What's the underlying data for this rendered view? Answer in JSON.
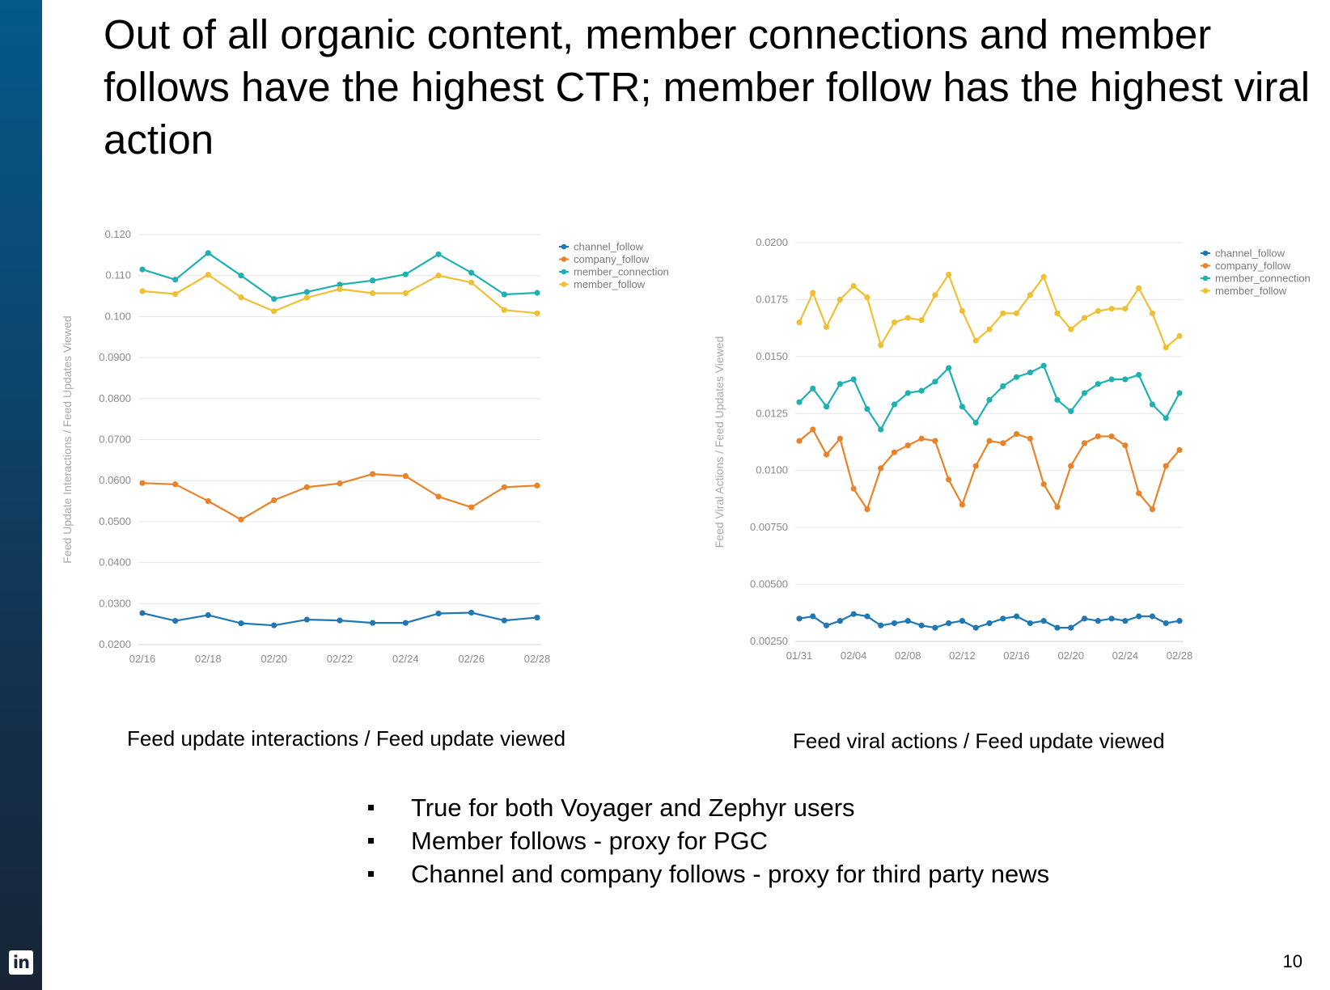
{
  "slide": {
    "title": "Out of all organic content, member connections and member follows have the highest CTR; member follow has the highest viral action",
    "caption_left": "Feed update interactions  / Feed update viewed",
    "caption_right": "Feed viral actions  / Feed update viewed",
    "bullets": [
      "True for both Voyager and Zephyr users",
      "Member follows - proxy for PGC",
      "Channel and company follows - proxy for third party news"
    ],
    "page_number": "10",
    "logo_text": "in"
  },
  "colors": {
    "channel_follow": "#1f77b4",
    "company_follow": "#e8832a",
    "member_connection": "#1fb1b1",
    "member_follow": "#f0c034",
    "grid": "#e6e6e6",
    "sidebar": "#0b4a73"
  },
  "chart_data": [
    {
      "type": "line",
      "title": "",
      "xlabel": "",
      "ylabel": "Feed Update Interactions / Feed Updates Viewed",
      "ylim": [
        0.02,
        0.12
      ],
      "yticks": [
        0.02,
        0.03,
        0.04,
        0.05,
        0.06,
        0.07,
        0.08,
        0.09,
        0.1,
        0.11,
        0.12
      ],
      "ytick_labels": [
        "0.0200",
        "0.0300",
        "0.0400",
        "0.0500",
        "0.0600",
        "0.0700",
        "0.0800",
        "0.0900",
        "0.100",
        "0.110",
        "0.120"
      ],
      "x": [
        "02/16",
        "02/17",
        "02/18",
        "02/19",
        "02/20",
        "02/21",
        "02/22",
        "02/23",
        "02/24",
        "02/25",
        "02/26",
        "02/27",
        "02/28"
      ],
      "xtick_labels": [
        "02/16",
        "02/18",
        "02/20",
        "02/22",
        "02/24",
        "02/26",
        "02/28"
      ],
      "grid": true,
      "legend": "top-right",
      "series": [
        {
          "name": "channel_follow",
          "values": [
            0.0277,
            0.0258,
            0.0272,
            0.0252,
            0.0247,
            0.0261,
            0.0259,
            0.0253,
            0.0253,
            0.0276,
            0.0278,
            0.0259,
            0.0266
          ]
        },
        {
          "name": "company_follow",
          "values": [
            0.0594,
            0.0591,
            0.055,
            0.0505,
            0.0552,
            0.0584,
            0.0593,
            0.0616,
            0.0611,
            0.0561,
            0.0535,
            0.0584,
            0.0588
          ]
        },
        {
          "name": "member_connection",
          "values": [
            0.1115,
            0.109,
            0.1155,
            0.11,
            0.1043,
            0.106,
            0.1078,
            0.1088,
            0.1103,
            0.1152,
            0.1107,
            0.1054,
            0.1058
          ]
        },
        {
          "name": "member_follow",
          "values": [
            0.1062,
            0.1055,
            0.1102,
            0.1047,
            0.1013,
            0.1046,
            0.1067,
            0.1057,
            0.1057,
            0.11,
            0.1083,
            0.1016,
            0.1008
          ]
        }
      ]
    },
    {
      "type": "line",
      "title": "",
      "xlabel": "",
      "ylabel": "Feed Viral Actions / Feed Updates Viewed",
      "ylim": [
        0.0025,
        0.02
      ],
      "yticks": [
        0.0025,
        0.005,
        0.0075,
        0.01,
        0.0125,
        0.015,
        0.0175,
        0.02
      ],
      "ytick_labels": [
        "0.00250",
        "0.00500",
        "0.00750",
        "0.0100",
        "0.0125",
        "0.0150",
        "0.0175",
        "0.0200"
      ],
      "x": [
        "01/31",
        "02/01",
        "02/02",
        "02/03",
        "02/04",
        "02/05",
        "02/06",
        "02/07",
        "02/08",
        "02/09",
        "02/10",
        "02/11",
        "02/12",
        "02/13",
        "02/14",
        "02/15",
        "02/16",
        "02/17",
        "02/18",
        "02/19",
        "02/20",
        "02/21",
        "02/22",
        "02/23",
        "02/24",
        "02/25",
        "02/26",
        "02/27",
        "02/28"
      ],
      "xtick_labels": [
        "01/31",
        "02/04",
        "02/08",
        "02/12",
        "02/16",
        "02/20",
        "02/24",
        "02/28"
      ],
      "grid": true,
      "legend": "top-right",
      "series": [
        {
          "name": "channel_follow",
          "values": [
            0.0035,
            0.0036,
            0.0032,
            0.0034,
            0.0037,
            0.0036,
            0.0032,
            0.0033,
            0.0034,
            0.0032,
            0.0031,
            0.0033,
            0.0034,
            0.0031,
            0.0033,
            0.0035,
            0.0036,
            0.0033,
            0.0034,
            0.0031,
            0.0031,
            0.0035,
            0.0034,
            0.0035,
            0.0034,
            0.0036,
            0.0036,
            0.0033,
            0.0034
          ]
        },
        {
          "name": "company_follow",
          "values": [
            0.0113,
            0.0118,
            0.0107,
            0.0114,
            0.0092,
            0.0083,
            0.0101,
            0.0108,
            0.0111,
            0.0114,
            0.0113,
            0.0096,
            0.0085,
            0.0102,
            0.0113,
            0.0112,
            0.0116,
            0.0114,
            0.0094,
            0.0084,
            0.0102,
            0.0112,
            0.0115,
            0.0115,
            0.0111,
            0.009,
            0.0083,
            0.0102,
            0.0109
          ]
        },
        {
          "name": "member_connection",
          "values": [
            0.013,
            0.0136,
            0.0128,
            0.0138,
            0.014,
            0.0127,
            0.0118,
            0.0129,
            0.0134,
            0.0135,
            0.0139,
            0.0145,
            0.0128,
            0.0121,
            0.0131,
            0.0137,
            0.0141,
            0.0143,
            0.0146,
            0.0131,
            0.0126,
            0.0134,
            0.0138,
            0.014,
            0.014,
            0.0142,
            0.0129,
            0.0123,
            0.0134
          ]
        },
        {
          "name": "member_follow",
          "values": [
            0.0165,
            0.0178,
            0.0163,
            0.0175,
            0.0181,
            0.0176,
            0.0155,
            0.0165,
            0.0167,
            0.0166,
            0.0177,
            0.0186,
            0.017,
            0.0157,
            0.0162,
            0.0169,
            0.0169,
            0.0177,
            0.0185,
            0.0169,
            0.0162,
            0.0167,
            0.017,
            0.0171,
            0.0171,
            0.018,
            0.0169,
            0.0154,
            0.0159
          ]
        }
      ]
    }
  ]
}
